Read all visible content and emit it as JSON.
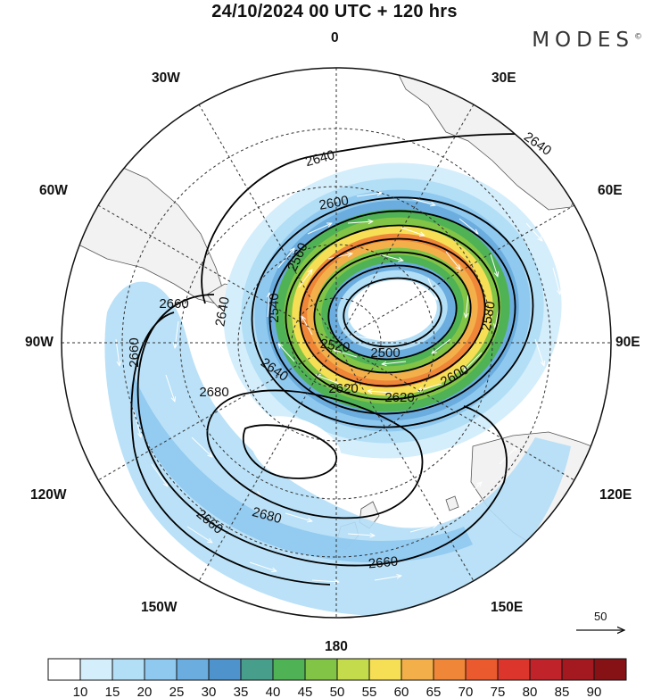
{
  "header": {
    "title": "24/10/2024  00 UTC  + 120 hrs",
    "brand": "MODES",
    "brand_mark": "©"
  },
  "longitude_labels": {
    "top": "0",
    "bottom": "180",
    "left": "90W",
    "right": "90E",
    "w30": "30W",
    "e30": "30E",
    "w60": "60W",
    "e60": "60E",
    "w120": "120W",
    "e120": "120E",
    "w150": "150W",
    "e150": "150E"
  },
  "contour_labels": [
    "2640",
    "2640",
    "2600",
    "2560",
    "2540",
    "2520",
    "2500",
    "2580",
    "2600",
    "2620",
    "2620",
    "2640",
    "2660",
    "2660",
    "2680",
    "2680",
    "2660",
    "2660",
    "2640"
  ],
  "reference_vector": {
    "label": "50"
  },
  "colorbar": {
    "ticks": [
      "10",
      "15",
      "20",
      "25",
      "30",
      "35",
      "40",
      "45",
      "50",
      "55",
      "60",
      "65",
      "70",
      "75",
      "80",
      "85",
      "90"
    ],
    "colors": [
      "#ffffff",
      "#d4eefb",
      "#b2def6",
      "#8fc9ef",
      "#6badde",
      "#4f93cd",
      "#479e8b",
      "#4fb255",
      "#82c446",
      "#c4dc4b",
      "#f6df55",
      "#f3b04a",
      "#ef8638",
      "#ea5a2e",
      "#dc352c",
      "#c0232a",
      "#a3191f",
      "#871216"
    ]
  },
  "colors": {
    "ocean": "#ffffff",
    "land": "#f2f2f2",
    "coast": "#555555",
    "contour": "#000000",
    "wind_arrow": "#ffffff"
  }
}
